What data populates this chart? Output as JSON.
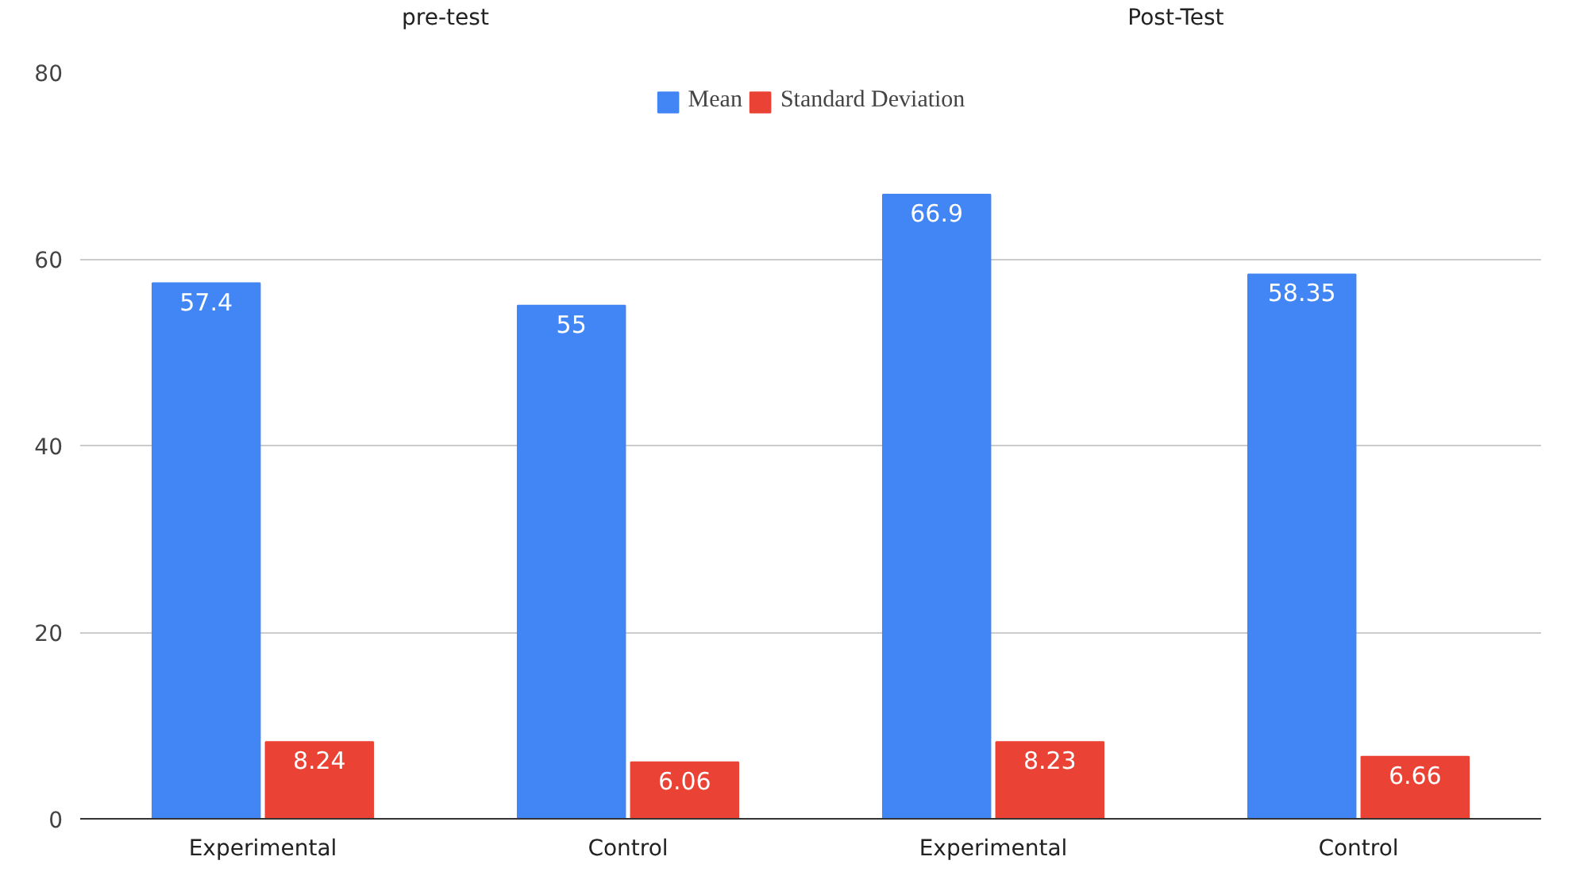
{
  "chart_data": {
    "type": "bar",
    "categories": [
      "Experimental",
      "Control",
      "Experimental",
      "Control"
    ],
    "series": [
      {
        "name": "Mean",
        "color": "#4285f4",
        "values": [
          57.4,
          55,
          66.9,
          58.35
        ]
      },
      {
        "name": "Standard Deviation",
        "color": "#ea4335",
        "values": [
          8.24,
          6.06,
          8.23,
          6.66
        ]
      }
    ],
    "annotations": [
      "pre-test",
      "Post-Test"
    ],
    "ylim": [
      0,
      80
    ],
    "yticks": [
      0,
      20,
      40,
      60,
      80
    ],
    "grid": "y",
    "legend": "top",
    "data_labels": true
  }
}
